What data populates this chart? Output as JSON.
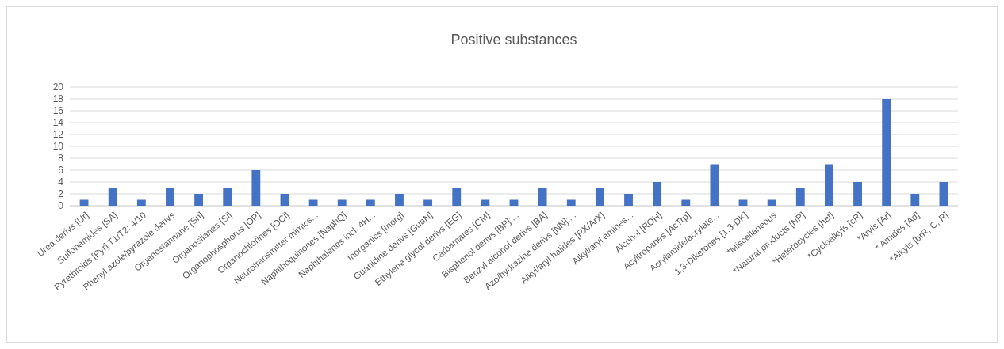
{
  "chart_data": {
    "type": "bar",
    "title": "Positive substances",
    "categories": [
      "Urea derivs [Ur]",
      "Sulfonamides [SA]",
      "Pyrethroids [Pyr] T1/T2: 4/10",
      "Phenyl azole/pyrazole derivs",
      "Organostannane [Sn]",
      "Organosilanes [Si]",
      "Organophosphorus [OP]",
      "Organochlorines [OCl]",
      "Neurotransmitter mimics...",
      "Naphthoquinones [NaphQ]",
      "Naphthalenes incl. 4H...",
      "Inorganics [Inorg]",
      "Guanidine derivs [GuaN]",
      "Ethylene glycol derivs [EG]",
      "Carbamates [CM]",
      "Bisphenol derivs [BP]:...",
      "Benzyl alcohol derivs [BA]",
      "Azo/hydrazine derivs [NN]:...",
      "Alkyl/aryl halides [RX/ArX]",
      "Alkyl/aryl amines...",
      "Alcohol [ROH]",
      "Acyltropanes [AcTrp]",
      "Acrylamide/acrylate...",
      "1,3-Diketones [1,3-DK]",
      "*Miscellaneous",
      "*Natural products [NP]",
      "*Heterocycles [het]",
      "*Cycloalkyls [cR]",
      "*Aryls [Ar]",
      "* Amides [Ad]",
      "*Alkyls [brR, C, R]"
    ],
    "values": [
      1,
      3,
      1,
      3,
      2,
      3,
      6,
      2,
      1,
      1,
      1,
      2,
      1,
      3,
      1,
      1,
      3,
      1,
      3,
      2,
      4,
      1,
      7,
      1,
      1,
      3,
      7,
      4,
      18,
      2,
      4
    ],
    "color": "#4472c4",
    "ylim": [
      0,
      20
    ],
    "yticks": [
      0,
      2,
      4,
      6,
      8,
      10,
      12,
      14,
      16,
      18,
      20
    ],
    "grid": "y"
  }
}
